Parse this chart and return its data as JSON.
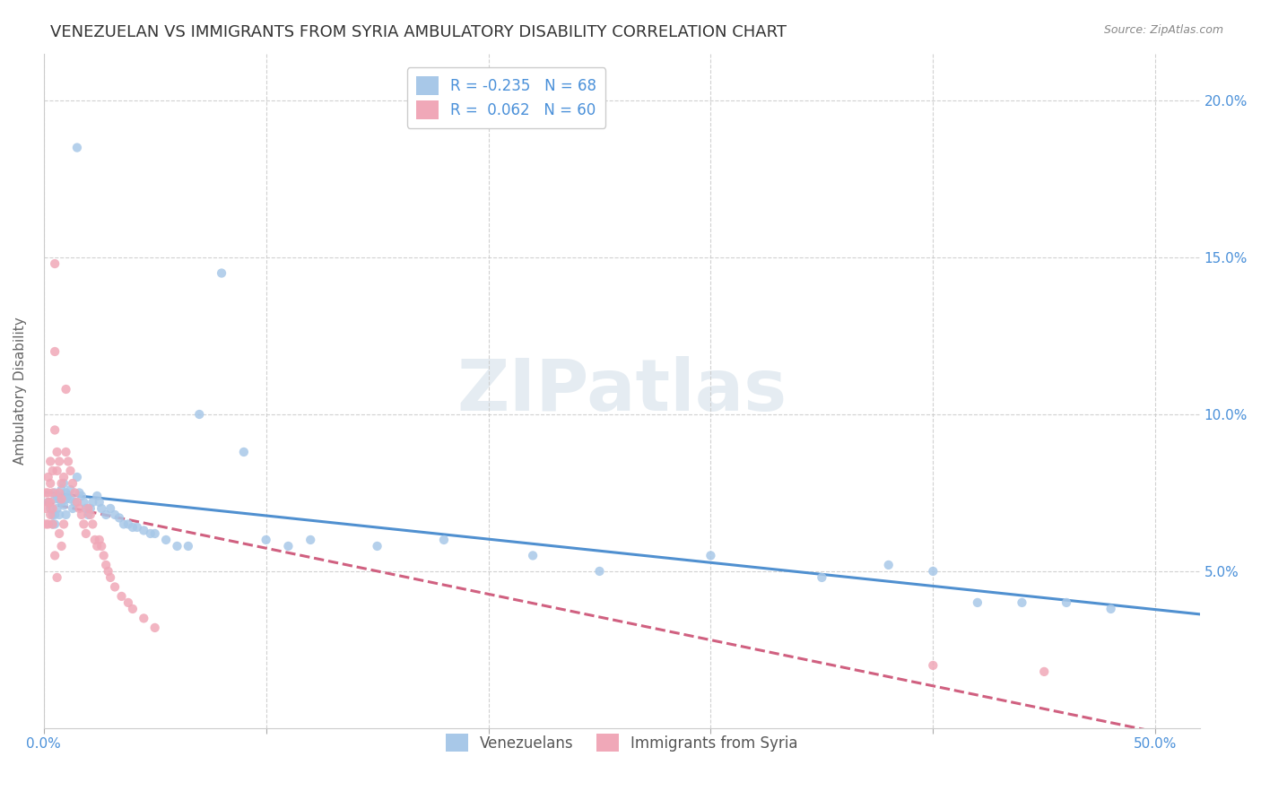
{
  "title": "VENEZUELAN VS IMMIGRANTS FROM SYRIA AMBULATORY DISABILITY CORRELATION CHART",
  "source": "Source: ZipAtlas.com",
  "ylabel": "Ambulatory Disability",
  "ytick_labels": [
    "5.0%",
    "10.0%",
    "15.0%",
    "20.0%"
  ],
  "ytick_values": [
    0.05,
    0.1,
    0.15,
    0.2
  ],
  "xtick_values": [
    0.0,
    0.1,
    0.2,
    0.3,
    0.4,
    0.5
  ],
  "xtick_labels": [
    "0.0%",
    "",
    "",
    "",
    "",
    "50.0%"
  ],
  "xlim": [
    0.0,
    0.52
  ],
  "ylim": [
    0.0,
    0.215
  ],
  "legend_venezuelans": "Venezuelans",
  "legend_syria": "Immigrants from Syria",
  "r_venezuelans": -0.235,
  "n_venezuelans": 68,
  "r_syria": 0.062,
  "n_syria": 60,
  "color_venezuelans": "#a8c8e8",
  "color_syria": "#f0a8b8",
  "color_trend_venezuelans": "#5090d0",
  "color_trend_syria": "#d06080",
  "background_color": "#ffffff",
  "grid_color": "#cccccc",
  "title_color": "#333333",
  "axis_label_color": "#4a90d9",
  "watermark": "ZIPatlas",
  "title_fontsize": 13,
  "axis_fontsize": 11,
  "tick_fontsize": 11,
  "legend_fontsize": 12,
  "venezuelan_x": [
    0.002,
    0.003,
    0.004,
    0.004,
    0.005,
    0.005,
    0.005,
    0.005,
    0.006,
    0.006,
    0.007,
    0.007,
    0.008,
    0.008,
    0.009,
    0.009,
    0.01,
    0.01,
    0.01,
    0.011,
    0.012,
    0.012,
    0.013,
    0.014,
    0.015,
    0.015,
    0.016,
    0.017,
    0.018,
    0.019,
    0.02,
    0.021,
    0.022,
    0.024,
    0.025,
    0.026,
    0.028,
    0.03,
    0.032,
    0.034,
    0.036,
    0.038,
    0.04,
    0.042,
    0.045,
    0.048,
    0.05,
    0.055,
    0.06,
    0.065,
    0.07,
    0.08,
    0.09,
    0.1,
    0.11,
    0.12,
    0.15,
    0.18,
    0.22,
    0.25,
    0.3,
    0.35,
    0.38,
    0.4,
    0.42,
    0.44,
    0.46,
    0.48
  ],
  "venezuelan_y": [
    0.072,
    0.07,
    0.068,
    0.065,
    0.075,
    0.073,
    0.068,
    0.065,
    0.074,
    0.07,
    0.073,
    0.068,
    0.076,
    0.072,
    0.078,
    0.071,
    0.075,
    0.073,
    0.068,
    0.074,
    0.076,
    0.073,
    0.07,
    0.072,
    0.185,
    0.08,
    0.075,
    0.074,
    0.072,
    0.07,
    0.068,
    0.07,
    0.072,
    0.074,
    0.072,
    0.07,
    0.068,
    0.07,
    0.068,
    0.067,
    0.065,
    0.065,
    0.064,
    0.064,
    0.063,
    0.062,
    0.062,
    0.06,
    0.058,
    0.058,
    0.1,
    0.145,
    0.088,
    0.06,
    0.058,
    0.06,
    0.058,
    0.06,
    0.055,
    0.05,
    0.055,
    0.048,
    0.052,
    0.05,
    0.04,
    0.04,
    0.04,
    0.038
  ],
  "syria_x": [
    0.001,
    0.001,
    0.001,
    0.002,
    0.002,
    0.002,
    0.002,
    0.003,
    0.003,
    0.003,
    0.003,
    0.004,
    0.004,
    0.004,
    0.004,
    0.005,
    0.005,
    0.005,
    0.005,
    0.006,
    0.006,
    0.006,
    0.007,
    0.007,
    0.007,
    0.008,
    0.008,
    0.008,
    0.009,
    0.009,
    0.01,
    0.01,
    0.011,
    0.012,
    0.013,
    0.014,
    0.015,
    0.016,
    0.017,
    0.018,
    0.019,
    0.02,
    0.021,
    0.022,
    0.023,
    0.024,
    0.025,
    0.026,
    0.027,
    0.028,
    0.029,
    0.03,
    0.032,
    0.035,
    0.038,
    0.04,
    0.045,
    0.05,
    0.4,
    0.45
  ],
  "syria_y": [
    0.075,
    0.07,
    0.065,
    0.08,
    0.075,
    0.072,
    0.065,
    0.085,
    0.078,
    0.072,
    0.068,
    0.082,
    0.075,
    0.07,
    0.065,
    0.148,
    0.12,
    0.095,
    0.055,
    0.088,
    0.082,
    0.048,
    0.085,
    0.075,
    0.062,
    0.078,
    0.073,
    0.058,
    0.08,
    0.065,
    0.108,
    0.088,
    0.085,
    0.082,
    0.078,
    0.075,
    0.072,
    0.07,
    0.068,
    0.065,
    0.062,
    0.07,
    0.068,
    0.065,
    0.06,
    0.058,
    0.06,
    0.058,
    0.055,
    0.052,
    0.05,
    0.048,
    0.045,
    0.042,
    0.04,
    0.038,
    0.035,
    0.032,
    0.02,
    0.018
  ]
}
